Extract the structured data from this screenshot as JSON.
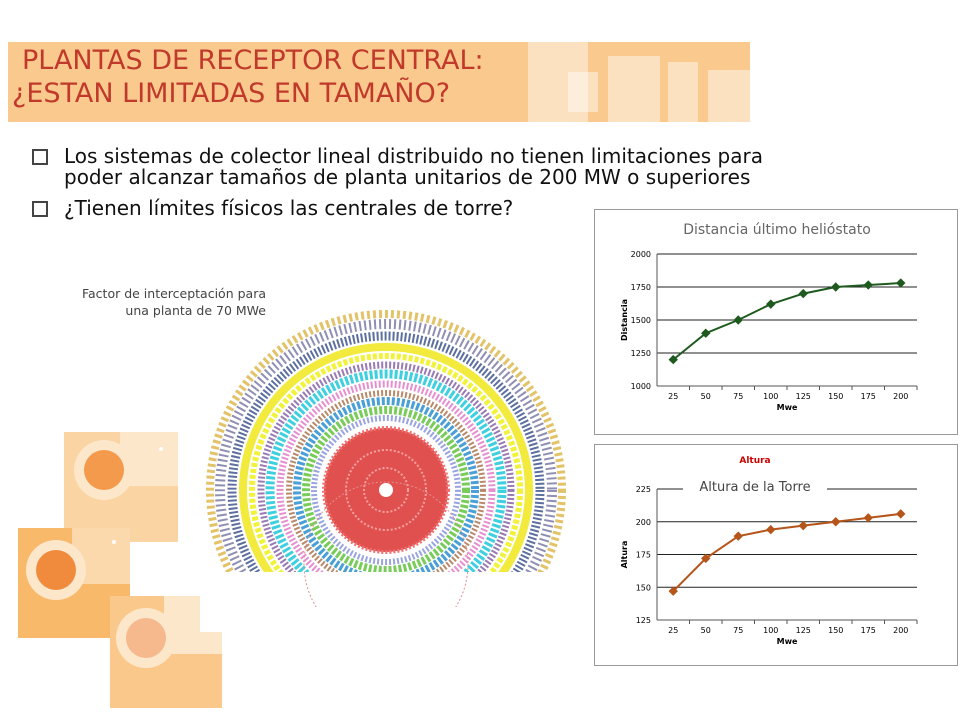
{
  "slide": {
    "title_line1": "PLANTAS DE RECEPTOR CENTRAL:",
    "title_line2": "¿ESTAN LIMITADAS EN TAMAÑO?",
    "bullets": [
      "Los sistemas de colector lineal distribuido no tienen limitaciones para poder alcanzar tamaños de planta unitarios de 200 MW o superiores",
      "¿Tienen límites físicos las centrales de torre?"
    ],
    "figure_caption": "Factor de interceptación para una planta de 70 MWe"
  },
  "colors": {
    "title": "#c0392b",
    "banner": "#f9c98d",
    "chart1_series": "#1e5a1e",
    "chart2_series": "#b5551a",
    "chart2_header": "#cc0000"
  },
  "chart_data": [
    {
      "type": "line",
      "title": "Distancia último helióstato",
      "xlabel": "Mwe",
      "ylabel": "Distancia",
      "x": [
        25,
        50,
        75,
        100,
        125,
        150,
        175,
        200
      ],
      "series": [
        {
          "values": [
            1200,
            1400,
            1500,
            1620,
            1700,
            1750,
            1765,
            1780
          ]
        }
      ],
      "yticks": [
        1000,
        1250,
        1500,
        1750,
        2000
      ],
      "ylim": [
        1000,
        2000
      ],
      "grid": true
    },
    {
      "type": "line",
      "title": "Altura",
      "annotation": "Altura de la Torre",
      "xlabel": "Mwe",
      "ylabel": "Altura",
      "x": [
        25,
        50,
        75,
        100,
        125,
        150,
        175,
        200
      ],
      "series": [
        {
          "values": [
            147,
            172,
            189,
            194,
            197,
            200,
            203,
            206
          ]
        }
      ],
      "yticks": [
        125,
        150,
        175,
        200,
        225
      ],
      "ylim": [
        125,
        225
      ],
      "grid": true
    }
  ]
}
